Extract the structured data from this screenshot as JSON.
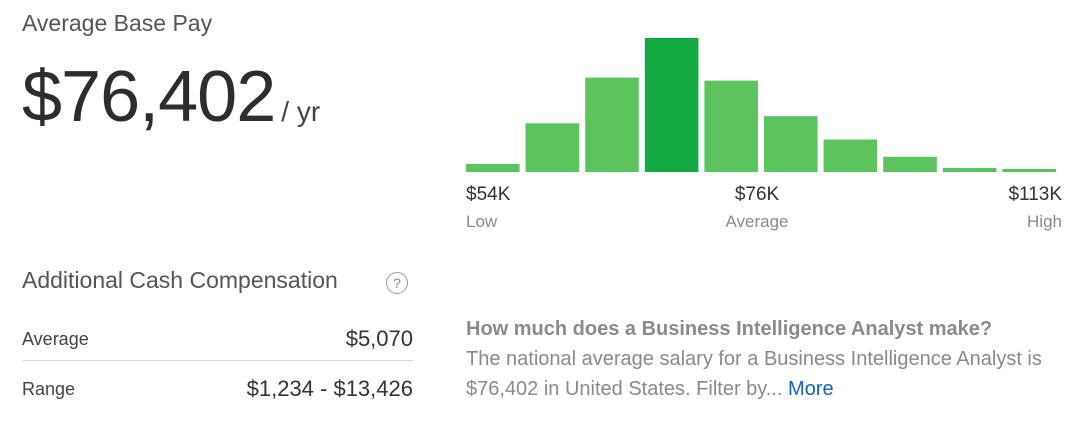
{
  "base_pay": {
    "title": "Average Base Pay",
    "value": "$76,402",
    "unit": "/ yr"
  },
  "chart_data": {
    "type": "bar",
    "values": [
      8,
      48,
      93,
      132,
      90,
      55,
      32,
      15,
      4,
      3
    ],
    "highlight_index": 3,
    "colors": {
      "bar": "#5cc35f",
      "highlight": "#13aa44"
    },
    "axis_labels": [
      {
        "value": "$54K",
        "sub": "Low",
        "align": "left"
      },
      {
        "value": "$76K",
        "sub": "Average",
        "align": "center"
      },
      {
        "value": "$113K",
        "sub": "High",
        "align": "right"
      }
    ]
  },
  "cash": {
    "title": "Additional Cash Compensation",
    "help_icon": "?",
    "rows": [
      {
        "label": "Average",
        "value": "$5,070"
      },
      {
        "label": "Range",
        "value": "$1,234 - $13,426"
      }
    ]
  },
  "info": {
    "question": "How much does a Business Intelligence Analyst make?",
    "body": "The national average salary for a Business Intelligence Analyst is $76,402 in United States. Filter by...",
    "more_label": "More",
    "link_color": "#1861bf"
  }
}
